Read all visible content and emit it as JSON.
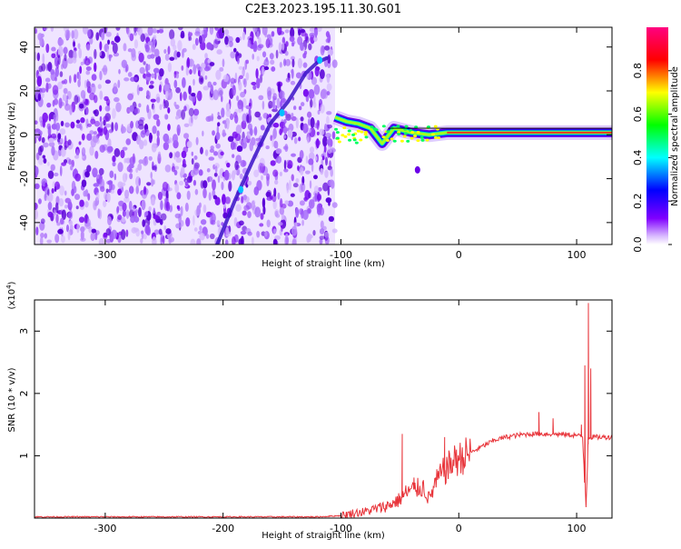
{
  "title": "C2E3.2023.195.11.30.G01",
  "chart_data": [
    {
      "type": "heatmap",
      "xlabel": "Height of straight line (km)",
      "ylabel": "Frequency (Hz)",
      "xlim": [
        -360,
        130
      ],
      "ylim": [
        -50,
        49
      ],
      "xticks": [
        -300,
        -200,
        -100,
        0,
        100
      ],
      "yticks": [
        -40,
        -20,
        0,
        20,
        40
      ],
      "colorbar": {
        "label": "Normalized spectral amplitude",
        "range": [
          0.0,
          1.0
        ],
        "ticks": [
          "0.0",
          "0.2",
          "0.4",
          "0.6",
          "0.8"
        ],
        "colormap": [
          "#ffffff",
          "#8000ff",
          "#0000ff",
          "#00ffff",
          "#00ff00",
          "#ffff00",
          "#ff0000",
          "#ff0080"
        ]
      },
      "noise_region_x": [
        -360,
        -105
      ],
      "diagonal_trace": [
        [
          -205,
          -50
        ],
        [
          -190,
          -30
        ],
        [
          -175,
          -12
        ],
        [
          -160,
          5
        ],
        [
          -145,
          15
        ],
        [
          -130,
          28
        ],
        [
          -120,
          33
        ],
        [
          -112,
          35
        ]
      ],
      "horizontal_trace": [
        [
          -105,
          8
        ],
        [
          -95,
          6
        ],
        [
          -85,
          5
        ],
        [
          -75,
          3
        ],
        [
          -65,
          -4
        ],
        [
          -55,
          3
        ],
        [
          -40,
          1
        ],
        [
          -25,
          0
        ],
        [
          -10,
          1
        ],
        [
          0,
          1
        ],
        [
          20,
          1
        ],
        [
          40,
          1
        ],
        [
          60,
          1
        ],
        [
          80,
          1
        ],
        [
          100,
          1
        ],
        [
          110,
          1
        ],
        [
          130,
          1
        ]
      ]
    },
    {
      "type": "line",
      "xlabel": "Height of straight line (km)",
      "ylabel": "SNR (10 * v/v)",
      "yscale_label": "(x10^4)",
      "xlim": [
        -360,
        130
      ],
      "ylim": [
        0,
        3.5
      ],
      "xticks": [
        -300,
        -200,
        -100,
        0,
        100
      ],
      "yticks": [
        1,
        2,
        3
      ],
      "series": [
        {
          "color": "#e8343a",
          "points": [
            [
              -360,
              0.02
            ],
            [
              -300,
              0.02
            ],
            [
              -200,
              0.02
            ],
            [
              -120,
              0.02
            ],
            [
              -100,
              0.04
            ],
            [
              -90,
              0.08
            ],
            [
              -80,
              0.1
            ],
            [
              -70,
              0.15
            ],
            [
              -60,
              0.2
            ],
            [
              -50,
              0.3
            ],
            [
              -45,
              0.4
            ],
            [
              -40,
              0.45
            ],
            [
              -30,
              0.5
            ],
            [
              -25,
              0.3
            ],
            [
              -20,
              0.55
            ],
            [
              -15,
              0.7
            ],
            [
              -10,
              0.8
            ],
            [
              -5,
              0.9
            ],
            [
              0,
              0.95
            ],
            [
              10,
              1.05
            ],
            [
              20,
              1.15
            ],
            [
              30,
              1.25
            ],
            [
              40,
              1.3
            ],
            [
              50,
              1.33
            ],
            [
              60,
              1.35
            ],
            [
              70,
              1.35
            ],
            [
              80,
              1.35
            ],
            [
              90,
              1.34
            ],
            [
              100,
              1.33
            ],
            [
              105,
              1.3
            ],
            [
              108,
              0.2
            ],
            [
              110,
              1.3
            ],
            [
              115,
              1.3
            ],
            [
              120,
              1.3
            ],
            [
              130,
              1.3
            ]
          ],
          "spikes": [
            [
              -48,
              1.35
            ],
            [
              -38,
              0.65
            ],
            [
              -12,
              1.3
            ],
            [
              -2,
              1.1
            ],
            [
              68,
              1.7
            ],
            [
              80,
              1.6
            ],
            [
              107,
              2.45
            ],
            [
              110,
              3.45
            ],
            [
              112,
              2.4
            ],
            [
              104,
              1.5
            ]
          ]
        }
      ]
    }
  ]
}
